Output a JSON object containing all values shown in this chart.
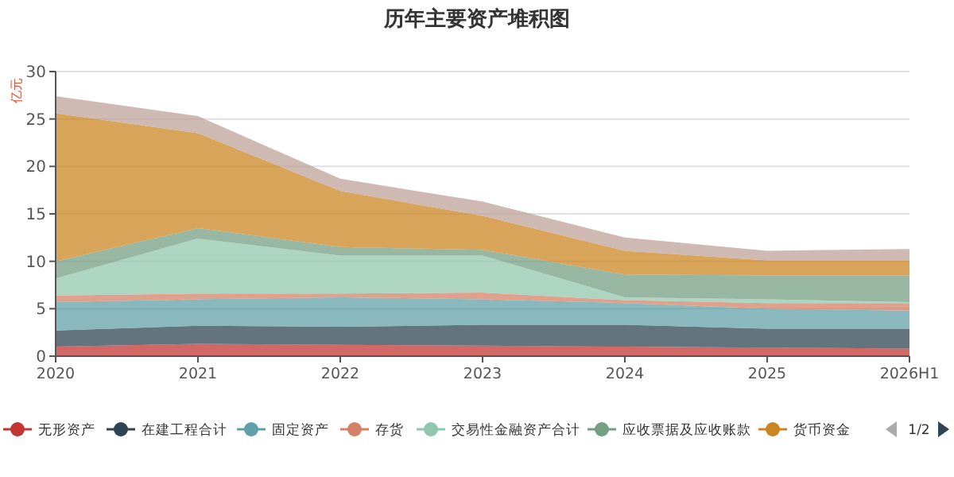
{
  "chart_data": {
    "type": "area",
    "stacked": true,
    "title": "历年主要资产堆积图",
    "ylabel": "亿元",
    "categories": [
      "2020",
      "2021",
      "2022",
      "2023",
      "2024",
      "2025",
      "2026H1"
    ],
    "ylim": [
      0,
      30
    ],
    "yticks": [
      0,
      5,
      10,
      15,
      20,
      25,
      30
    ],
    "grid": "y",
    "legend": "bottom",
    "series": [
      {
        "name": "无形资产",
        "color": "#c23531",
        "values": [
          1.0,
          1.3,
          1.2,
          1.1,
          1.0,
          0.9,
          0.8
        ]
      },
      {
        "name": "在建工程合计",
        "color": "#2f4554",
        "values": [
          1.7,
          1.9,
          1.9,
          2.2,
          2.3,
          2.0,
          2.1
        ]
      },
      {
        "name": "固定资产",
        "color": "#61a0a8",
        "values": [
          3.0,
          2.8,
          3.1,
          2.7,
          2.3,
          2.1,
          1.9
        ]
      },
      {
        "name": "存货",
        "color": "#d48265",
        "values": [
          0.7,
          0.6,
          0.4,
          0.7,
          0.3,
          0.6,
          0.8
        ]
      },
      {
        "name": "交易性金融资产合计",
        "color": "#91c7ae",
        "values": [
          1.8,
          5.8,
          4.0,
          3.9,
          0.3,
          0.4,
          0.1
        ]
      },
      {
        "name": "应收票据及应收账款",
        "color": "#749f83",
        "values": [
          1.8,
          1.1,
          0.9,
          0.6,
          2.4,
          2.5,
          2.8
        ]
      },
      {
        "name": "货币资金",
        "color": "#ca8622",
        "values": [
          15.6,
          10.0,
          5.9,
          3.6,
          2.5,
          1.6,
          1.6
        ]
      },
      {
        "color": "#bda29a",
        "values": [
          1.8,
          1.8,
          1.3,
          1.5,
          1.4,
          1.0,
          1.2
        ]
      }
    ],
    "annotations": [
      "1/2"
    ]
  }
}
